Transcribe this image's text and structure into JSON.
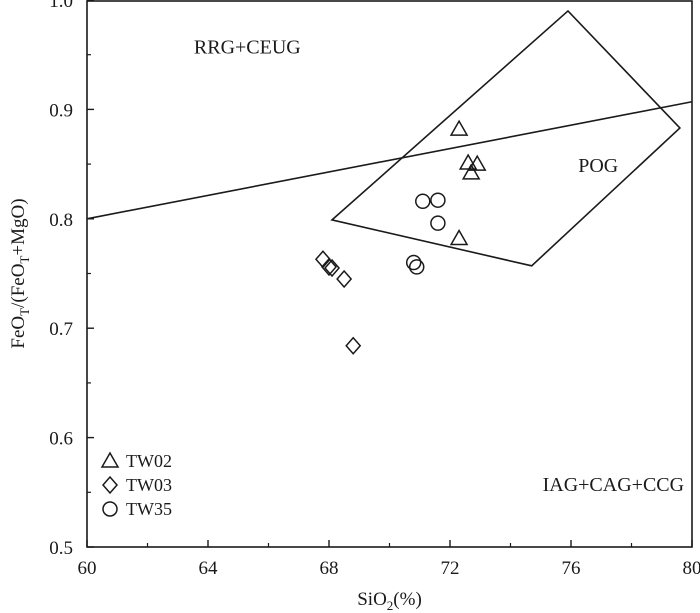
{
  "chart_data": {
    "type": "scatter",
    "title": "",
    "xlabel": {
      "base": "SiO",
      "sub": "2",
      "tail": "(%)"
    },
    "ylabel": [
      {
        "t": "FeO"
      },
      {
        "t": "T",
        "sub": true
      },
      {
        "t": "/(FeO"
      },
      {
        "t": "T",
        "sub": true
      },
      {
        "t": "+MgO)"
      }
    ],
    "xlim": [
      60,
      80
    ],
    "ylim": [
      0.5,
      1.0
    ],
    "xticks": [
      "60",
      "64",
      "68",
      "72",
      "76",
      "80"
    ],
    "yticks": [
      "0.5",
      "0.6",
      "0.7",
      "0.8",
      "0.9",
      "1.0"
    ],
    "grid": false,
    "legend_position": "bottom-left",
    "series": [
      {
        "name": "TW02",
        "marker": "triangle",
        "points": [
          [
            72.3,
            0.882
          ],
          [
            72.6,
            0.851
          ],
          [
            72.9,
            0.85
          ],
          [
            72.7,
            0.842
          ],
          [
            72.3,
            0.782
          ]
        ]
      },
      {
        "name": "TW03",
        "marker": "diamond",
        "points": [
          [
            67.8,
            0.763
          ],
          [
            68.0,
            0.756
          ],
          [
            68.1,
            0.755
          ],
          [
            68.5,
            0.745
          ],
          [
            68.8,
            0.684
          ]
        ]
      },
      {
        "name": "TW35",
        "marker": "circle",
        "points": [
          [
            71.1,
            0.816
          ],
          [
            71.6,
            0.817
          ],
          [
            71.6,
            0.796
          ],
          [
            70.8,
            0.76
          ],
          [
            70.9,
            0.756
          ]
        ]
      }
    ],
    "lines": [
      {
        "name": "discrimination-line",
        "points": [
          [
            60,
            0.8
          ],
          [
            80,
            0.907
          ]
        ]
      }
    ],
    "polygons": [
      {
        "name": "pog-field",
        "points": [
          [
            68.1,
            0.799
          ],
          [
            75.9,
            0.99
          ],
          [
            79.6,
            0.883
          ],
          [
            74.7,
            0.757
          ]
        ]
      }
    ],
    "field_labels": [
      {
        "name": "rrg-ceug",
        "text": "RRG+CEUG",
        "at": [
          65.3,
          0.951
        ]
      },
      {
        "name": "pog",
        "text": "POG",
        "at": [
          76.9,
          0.843
        ]
      },
      {
        "name": "iag-cag-ccg",
        "text": "IAG+CAG+CCG",
        "at": [
          77.4,
          0.551
        ]
      }
    ]
  }
}
